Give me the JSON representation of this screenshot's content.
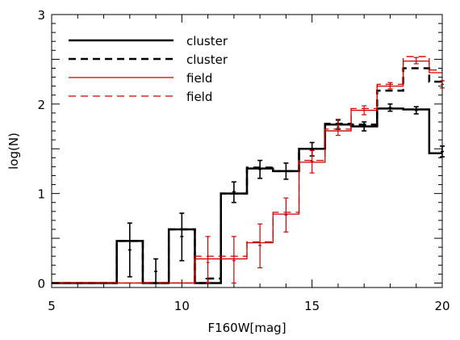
{
  "chart_data": {
    "type": "line",
    "style": "histogram-step",
    "xlabel": "F160W[mag]",
    "ylabel": "log(N)",
    "xlim": [
      5,
      20
    ],
    "ylim": [
      -0.05,
      3
    ],
    "x_ticks": [
      5,
      10,
      15,
      20
    ],
    "y_ticks": [
      0,
      1,
      2,
      3
    ],
    "grid": false,
    "legend_position": "top-left",
    "legend": [
      {
        "label": "cluster",
        "color": "#000000",
        "dash": "solid"
      },
      {
        "label": "cluster",
        "color": "#000000",
        "dash": "dashed"
      },
      {
        "label": "field",
        "color": "#cc0000",
        "dash": "solid"
      },
      {
        "label": "field",
        "color": "#cc0000",
        "dash": "dashed"
      }
    ],
    "bin_edges": [
      5,
      5.5,
      6,
      6.5,
      7,
      7.5,
      8,
      8.5,
      9,
      9.5,
      10,
      10.5,
      11,
      11.5,
      12,
      12.5,
      13,
      13.5,
      14,
      14.5,
      15,
      15.5,
      16,
      16.5,
      17,
      17.5,
      18,
      18.5,
      19,
      19.5,
      20
    ],
    "series": [
      {
        "name": "cluster",
        "color": "#000000",
        "dash": "solid",
        "width": 2.5,
        "values": [
          0,
          0,
          0,
          0,
          0,
          0.47,
          0.47,
          0,
          0,
          0.6,
          0.6,
          0,
          0,
          1.0,
          1.0,
          1.28,
          1.28,
          1.25,
          1.25,
          1.5,
          1.5,
          1.77,
          1.77,
          1.75,
          1.75,
          1.95,
          1.95,
          1.94,
          1.94,
          1.45
        ]
      },
      {
        "name": "cluster",
        "color": "#000000",
        "dash": "dashed",
        "width": 2.5,
        "values": [
          0,
          0,
          0,
          0,
          0,
          0.47,
          0.47,
          0,
          0,
          0.6,
          0.6,
          0,
          0.05,
          1.0,
          1.0,
          1.29,
          1.29,
          1.25,
          1.25,
          1.5,
          1.5,
          1.78,
          1.78,
          1.77,
          1.77,
          2.15,
          2.15,
          2.4,
          2.4,
          2.25
        ]
      },
      {
        "name": "field",
        "color": "#cc0000",
        "dash": "solid",
        "width": 1.3,
        "values": [
          0,
          0,
          0,
          0,
          0,
          0,
          0,
          0,
          0,
          0,
          0,
          0.27,
          0.27,
          0.27,
          0.27,
          0.45,
          0.45,
          0.77,
          0.77,
          1.35,
          1.35,
          1.7,
          1.7,
          1.93,
          1.93,
          2.2,
          2.2,
          2.48,
          2.48,
          2.35
        ]
      },
      {
        "name": "field",
        "color": "#cc0000",
        "dash": "dashed",
        "width": 1.3,
        "values": [
          0,
          0,
          0,
          0,
          0,
          0,
          0,
          0,
          0,
          0,
          0,
          0.3,
          0.3,
          0.3,
          0.3,
          0.46,
          0.46,
          0.79,
          0.79,
          1.37,
          1.37,
          1.72,
          1.72,
          1.95,
          1.95,
          2.22,
          2.22,
          2.53,
          2.53,
          2.38
        ]
      }
    ],
    "error_bars": [
      {
        "color": "#000000",
        "points": [
          {
            "x": 8,
            "y": 0.37,
            "lo": 0.07,
            "hi": 0.67
          },
          {
            "x": 9,
            "y": 0.13,
            "lo": 0.0,
            "hi": 0.27
          },
          {
            "x": 10,
            "y": 0.52,
            "lo": 0.25,
            "hi": 0.78
          },
          {
            "x": 11,
            "y": 0.05,
            "lo": 0.0,
            "hi": 0.05
          },
          {
            "x": 12,
            "y": 1.02,
            "lo": 0.9,
            "hi": 1.13
          },
          {
            "x": 13,
            "y": 1.27,
            "lo": 1.17,
            "hi": 1.37
          },
          {
            "x": 14,
            "y": 1.25,
            "lo": 1.16,
            "hi": 1.34
          },
          {
            "x": 15,
            "y": 1.49,
            "lo": 1.42,
            "hi": 1.57
          },
          {
            "x": 16,
            "y": 1.77,
            "lo": 1.72,
            "hi": 1.82
          },
          {
            "x": 17,
            "y": 1.75,
            "lo": 1.7,
            "hi": 1.8
          },
          {
            "x": 18,
            "y": 1.96,
            "lo": 1.92,
            "hi": 2.0
          },
          {
            "x": 19,
            "y": 1.93,
            "lo": 1.89,
            "hi": 1.97
          },
          {
            "x": 20,
            "y": 1.47,
            "lo": 1.41,
            "hi": 1.53
          }
        ]
      },
      {
        "color": "#cc0000",
        "points": [
          {
            "x": 11,
            "y": 0.23,
            "lo": 0.0,
            "hi": 0.52
          },
          {
            "x": 12,
            "y": 0.25,
            "lo": 0.0,
            "hi": 0.52
          },
          {
            "x": 13,
            "y": 0.42,
            "lo": 0.17,
            "hi": 0.66
          },
          {
            "x": 14,
            "y": 0.76,
            "lo": 0.57,
            "hi": 0.95
          },
          {
            "x": 15,
            "y": 1.36,
            "lo": 1.23,
            "hi": 1.48
          },
          {
            "x": 16,
            "y": 1.74,
            "lo": 1.65,
            "hi": 1.83
          },
          {
            "x": 17,
            "y": 1.93,
            "lo": 1.88,
            "hi": 1.98
          },
          {
            "x": 18,
            "y": 2.2,
            "lo": 2.17,
            "hi": 2.24
          },
          {
            "x": 19,
            "y": 2.48,
            "lo": 2.45,
            "hi": 2.52
          },
          {
            "x": 20,
            "y": 2.22,
            "lo": 2.18,
            "hi": 2.26
          }
        ]
      }
    ]
  }
}
